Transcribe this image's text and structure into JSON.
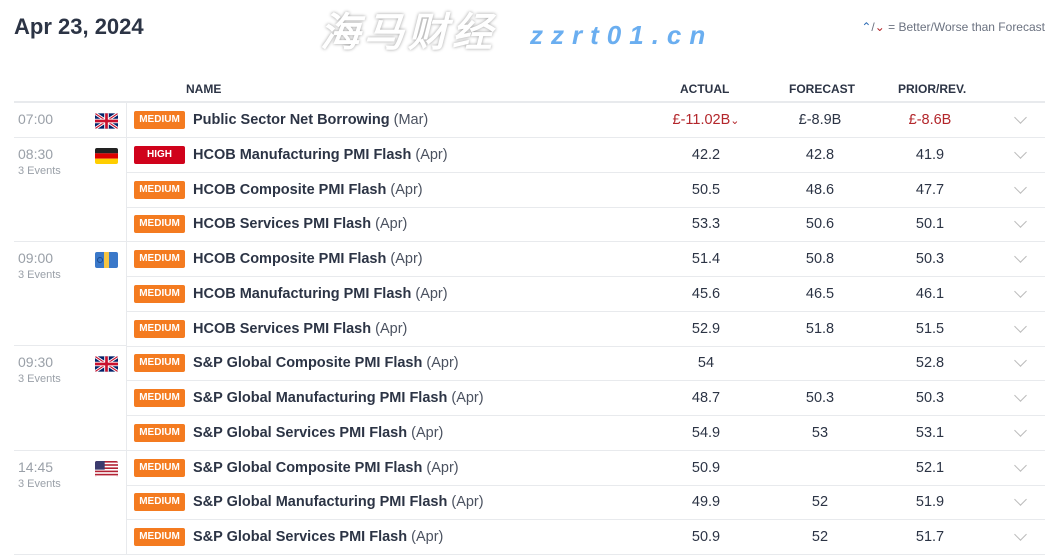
{
  "title": "Apr 23, 2024",
  "legend": {
    "better_icon": "better-arrow-icon",
    "worse_icon": "worse-arrow-icon",
    "text": "= Better/Worse than Forecast"
  },
  "headers": {
    "name": "NAME",
    "actual": "ACTUAL",
    "forecast": "FORECAST",
    "prior": "PRIOR/REV."
  },
  "colors": {
    "medium": "#f47b20",
    "high": "#d0021b",
    "worse": "#b3262b",
    "better": "#2f6db5"
  },
  "groups": [
    {
      "time": "07:00",
      "events": "",
      "flag": "uk",
      "rows": [
        {
          "impact": "MEDIUM",
          "name": "Public Sector Net Borrowing",
          "period": "(Mar)",
          "actual": "£-11.02B",
          "actual_status": "worse",
          "forecast": "£-8.9B",
          "prior": "£-8.6B",
          "prior_status": "revised"
        }
      ]
    },
    {
      "time": "08:30",
      "events": "3 Events",
      "flag": "de",
      "rows": [
        {
          "impact": "HIGH",
          "name": "HCOB Manufacturing PMI Flash",
          "period": "(Apr)",
          "actual": "42.2",
          "forecast": "42.8",
          "prior": "41.9"
        },
        {
          "impact": "MEDIUM",
          "name": "HCOB Composite PMI Flash",
          "period": "(Apr)",
          "actual": "50.5",
          "forecast": "48.6",
          "prior": "47.7"
        },
        {
          "impact": "MEDIUM",
          "name": "HCOB Services PMI Flash",
          "period": "(Apr)",
          "actual": "53.3",
          "forecast": "50.6",
          "prior": "50.1"
        }
      ]
    },
    {
      "time": "09:00",
      "events": "3 Events",
      "flag": "eu",
      "rows": [
        {
          "impact": "MEDIUM",
          "name": "HCOB Composite PMI Flash",
          "period": "(Apr)",
          "actual": "51.4",
          "forecast": "50.8",
          "prior": "50.3"
        },
        {
          "impact": "MEDIUM",
          "name": "HCOB Manufacturing PMI Flash",
          "period": "(Apr)",
          "actual": "45.6",
          "forecast": "46.5",
          "prior": "46.1"
        },
        {
          "impact": "MEDIUM",
          "name": "HCOB Services PMI Flash",
          "period": "(Apr)",
          "actual": "52.9",
          "forecast": "51.8",
          "prior": "51.5"
        }
      ]
    },
    {
      "time": "09:30",
      "events": "3 Events",
      "flag": "uk",
      "rows": [
        {
          "impact": "MEDIUM",
          "name": "S&P Global Composite PMI Flash",
          "period": "(Apr)",
          "actual": "54",
          "forecast": "",
          "prior": "52.8"
        },
        {
          "impact": "MEDIUM",
          "name": "S&P Global Manufacturing PMI Flash",
          "period": "(Apr)",
          "actual": "48.7",
          "forecast": "50.3",
          "prior": "50.3"
        },
        {
          "impact": "MEDIUM",
          "name": "S&P Global Services PMI Flash",
          "period": "(Apr)",
          "actual": "54.9",
          "forecast": "53",
          "prior": "53.1"
        }
      ]
    },
    {
      "time": "14:45",
      "events": "3 Events",
      "flag": "us",
      "rows": [
        {
          "impact": "MEDIUM",
          "name": "S&P Global Composite PMI Flash",
          "period": "(Apr)",
          "actual": "50.9",
          "forecast": "",
          "prior": "52.1"
        },
        {
          "impact": "MEDIUM",
          "name": "S&P Global Manufacturing PMI Flash",
          "period": "(Apr)",
          "actual": "49.9",
          "forecast": "52",
          "prior": "51.9"
        },
        {
          "impact": "MEDIUM",
          "name": "S&P Global Services PMI Flash",
          "period": "(Apr)",
          "actual": "50.9",
          "forecast": "52",
          "prior": "51.7"
        }
      ]
    }
  ],
  "watermark": {
    "line1": "海马财经",
    "line2": "zzrt01.cn"
  }
}
